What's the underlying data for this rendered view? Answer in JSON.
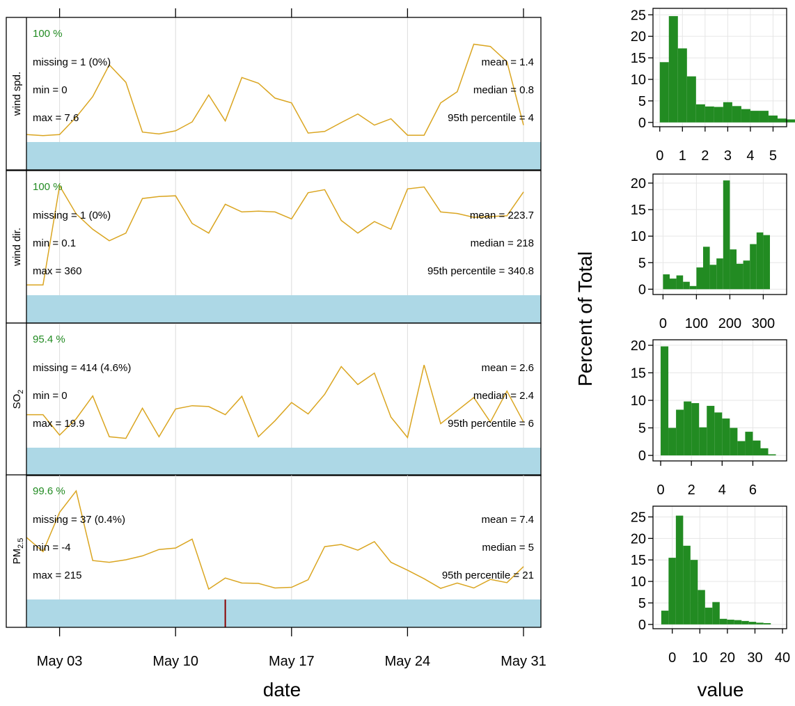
{
  "chart_data": [
    {
      "type": "line",
      "xlabel": "date",
      "x_ticks": [
        "May 03",
        "May 10",
        "May 17",
        "May 24",
        "May 31"
      ],
      "x_tick_days": [
        3,
        10,
        17,
        24,
        31
      ],
      "x_range_days": [
        1,
        31
      ],
      "line_color": "#DAA520",
      "bar_color": "#ADD8E6",
      "missing_color": "#8B0000",
      "pct_color": "#228B22",
      "panels": [
        {
          "label": "wind spd.",
          "pct": "100 %",
          "missing": "missing = 1 (0%)",
          "min": "min = 0",
          "max": "max = 7.6",
          "mean": "mean = 1.4",
          "median": "median = 0.8",
          "p95": "95th percentile = 4",
          "missing_days": [],
          "ylim": [
            0,
            3.6
          ],
          "values": [
            0.3,
            0.27,
            0.3,
            0.85,
            1.5,
            2.5,
            1.95,
            0.38,
            0.32,
            0.42,
            0.7,
            1.55,
            0.73,
            2.1,
            1.92,
            1.45,
            1.3,
            0.35,
            0.4,
            0.68,
            0.95,
            0.6,
            0.8,
            0.28,
            0.28,
            1.3,
            1.65,
            3.15,
            3.08,
            2.6,
            0.6
          ]
        },
        {
          "label": "wind dir.",
          "pct": "100 %",
          "missing": "missing = 1 (0%)",
          "min": "min = 0.1",
          "max": "max = 360",
          "mean": "mean = 223.7",
          "median": "median = 218",
          "p95": "95th percentile = 340.8",
          "missing_days": [],
          "ylim": [
            28,
            325
          ],
          "values": [
            60,
            60,
            318,
            245,
            205,
            175,
            195,
            285,
            290,
            292,
            220,
            195,
            270,
            250,
            252,
            250,
            232,
            300,
            308,
            228,
            195,
            225,
            205,
            310,
            315,
            250,
            246,
            236,
            238,
            240,
            302
          ]
        },
        {
          "label": "SO2",
          "label_main": "SO",
          "label_sub": "2",
          "pct": "95.4 %",
          "missing": "missing = 414 (4.6%)",
          "min": "min = 0",
          "max": "max = 19.9",
          "mean": "mean = 2.6",
          "median": "median = 2.4",
          "p95": "95th percentile = 6",
          "missing_days": [],
          "ylim": [
            0,
            7.0
          ],
          "values": [
            2.15,
            2.15,
            0.9,
            1.9,
            3.3,
            0.8,
            0.7,
            2.55,
            0.8,
            2.5,
            2.7,
            2.65,
            2.15,
            3.28,
            0.8,
            1.78,
            2.9,
            2.2,
            3.4,
            5.1,
            4.0,
            4.7,
            2.0,
            0.75,
            5.2,
            1.6,
            2.4,
            3.2,
            1.7,
            3.6,
            1.7
          ]
        },
        {
          "label": "PM2.5",
          "label_main": "PM",
          "label_sub": "2.5",
          "pct": "99.6 %",
          "missing": "missing = 37 (0.4%)",
          "min": "min = -4",
          "max": "max = 215",
          "mean": "mean = 7.4",
          "median": "median = 5",
          "p95": "95th percentile = 21",
          "missing_days": [
            13
          ],
          "ylim": [
            0,
            32
          ],
          "values": [
            18,
            14,
            25,
            31,
            11.5,
            11,
            11.7,
            12.8,
            14.6,
            15,
            17.5,
            3.5,
            6.6,
            5.2,
            5.1,
            3.8,
            4.0,
            6.1,
            15.4,
            16,
            14.4,
            16.8,
            11,
            8.8,
            6.4,
            3.7,
            5.2,
            3.8,
            6.2,
            5.3,
            9.8
          ]
        }
      ]
    },
    {
      "type": "bar",
      "subtype": "histogram",
      "xlabel": "value",
      "ylabel": "Percent of Total",
      "bar_color": "#228B22",
      "panels": [
        {
          "x_ticks": [
            0,
            1,
            2,
            3,
            4,
            5
          ],
          "xlim": [
            -0.3,
            5.6
          ],
          "y_ticks": [
            0,
            5,
            10,
            15,
            20,
            25
          ],
          "ylim": [
            -1,
            26.5
          ],
          "bin_start": 0,
          "bin_width": 0.4,
          "values": [
            14,
            24.7,
            17.2,
            10.7,
            4.2,
            3.7,
            3.6,
            4.7,
            3.8,
            3.1,
            2.7,
            2.7,
            1.6,
            0.9,
            0.7
          ]
        },
        {
          "x_ticks": [
            0,
            100,
            200,
            300
          ],
          "xlim": [
            -30,
            370
          ],
          "y_ticks": [
            0,
            5,
            10,
            15,
            20
          ],
          "ylim": [
            -1,
            21.7
          ],
          "bin_start": 0,
          "bin_width": 20,
          "values": [
            2.8,
            2.0,
            2.6,
            1.4,
            0.6,
            4.1,
            8.0,
            4.6,
            5.8,
            20.5,
            7.5,
            4.8,
            5.4,
            8.5,
            10.7,
            10.2
          ]
        },
        {
          "x_ticks": [
            0,
            2,
            4,
            6
          ],
          "xlim": [
            -0.5,
            8.2
          ],
          "y_ticks": [
            0,
            5,
            10,
            15,
            20
          ],
          "ylim": [
            -1,
            21
          ],
          "bin_start": 0,
          "bin_width": 0.5,
          "values": [
            19.8,
            5.0,
            8.3,
            9.8,
            9.5,
            5.1,
            9.0,
            7.8,
            6.7,
            5.0,
            2.6,
            4.3,
            2.7,
            1.3,
            0.2
          ]
        },
        {
          "x_ticks": [
            0,
            10,
            20,
            30,
            40
          ],
          "xlim": [
            -7,
            41.5
          ],
          "y_ticks": [
            0,
            5,
            10,
            15,
            20,
            25
          ],
          "ylim": [
            -1,
            27.5
          ],
          "bin_start": -4,
          "bin_width": 2.65,
          "values": [
            3.2,
            15.5,
            25.3,
            18.3,
            15.0,
            8.0,
            3.9,
            5.2,
            1.3,
            1.1,
            1.0,
            0.8,
            0.6,
            0.4,
            0.3
          ]
        }
      ]
    }
  ]
}
